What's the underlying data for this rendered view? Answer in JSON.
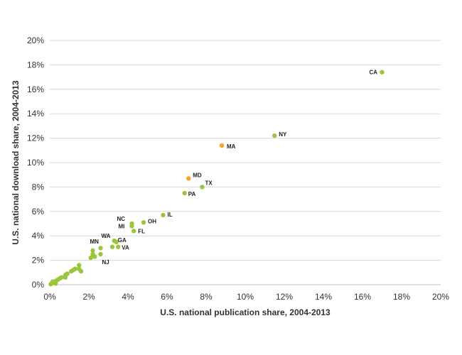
{
  "chart_data": {
    "type": "scatter",
    "title": "",
    "xlabel": "U.S. national publication share, 2004-2013",
    "ylabel": "U.S. national download share, 2004-2013",
    "xlim": [
      0,
      20
    ],
    "ylim": [
      0,
      20
    ],
    "x_ticks": [
      "0%",
      "2%",
      "4%",
      "6%",
      "8%",
      "10%",
      "12%",
      "14%",
      "16%",
      "18%",
      "20%"
    ],
    "y_ticks": [
      "0%",
      "2%",
      "4%",
      "6%",
      "8%",
      "10%",
      "12%",
      "14%",
      "16%",
      "18%",
      "20%"
    ],
    "grid": "horizontal",
    "legend": "none",
    "colors": {
      "default": "#9bc53d",
      "highlight": "#f5a623"
    },
    "points": [
      {
        "x": 17.0,
        "y": 17.4,
        "label": "CA",
        "highlight": false
      },
      {
        "x": 11.5,
        "y": 12.2,
        "label": "NY",
        "highlight": false
      },
      {
        "x": 8.8,
        "y": 11.4,
        "label": "MA",
        "highlight": true
      },
      {
        "x": 7.1,
        "y": 8.7,
        "label": "MD",
        "highlight": true
      },
      {
        "x": 7.8,
        "y": 8.0,
        "label": "TX",
        "highlight": false
      },
      {
        "x": 6.9,
        "y": 7.5,
        "label": "PA",
        "highlight": false
      },
      {
        "x": 5.8,
        "y": 5.7,
        "label": "IL",
        "highlight": false
      },
      {
        "x": 4.8,
        "y": 5.1,
        "label": "OH",
        "highlight": false
      },
      {
        "x": 4.2,
        "y": 5.0,
        "label": "NC",
        "highlight": false
      },
      {
        "x": 4.2,
        "y": 4.8,
        "label": "MI",
        "highlight": false
      },
      {
        "x": 4.3,
        "y": 4.4,
        "label": "FL",
        "highlight": false
      },
      {
        "x": 3.3,
        "y": 3.6,
        "label": "GA",
        "highlight": false
      },
      {
        "x": 3.4,
        "y": 3.5,
        "label": "WA",
        "highlight": false
      },
      {
        "x": 3.5,
        "y": 3.1,
        "label": "VA",
        "highlight": false
      },
      {
        "x": 3.2,
        "y": 3.1,
        "label": "",
        "highlight": false
      },
      {
        "x": 2.2,
        "y": 2.8,
        "label": "MN",
        "highlight": false
      },
      {
        "x": 2.6,
        "y": 2.5,
        "label": "NJ",
        "highlight": false
      },
      {
        "x": 2.6,
        "y": 3.0,
        "label": "",
        "highlight": false
      },
      {
        "x": 2.2,
        "y": 2.5,
        "label": "",
        "highlight": false
      },
      {
        "x": 2.3,
        "y": 2.3,
        "label": "",
        "highlight": false
      },
      {
        "x": 2.1,
        "y": 2.2,
        "label": "",
        "highlight": false
      },
      {
        "x": 1.5,
        "y": 1.6,
        "label": "",
        "highlight": false
      },
      {
        "x": 1.5,
        "y": 1.3,
        "label": "",
        "highlight": false
      },
      {
        "x": 1.6,
        "y": 1.1,
        "label": "",
        "highlight": false
      },
      {
        "x": 1.3,
        "y": 1.3,
        "label": "",
        "highlight": false
      },
      {
        "x": 1.2,
        "y": 1.2,
        "label": "",
        "highlight": false
      },
      {
        "x": 1.1,
        "y": 1.1,
        "label": "",
        "highlight": false
      },
      {
        "x": 0.9,
        "y": 0.9,
        "label": "",
        "highlight": false
      },
      {
        "x": 0.8,
        "y": 0.8,
        "label": "",
        "highlight": false
      },
      {
        "x": 0.8,
        "y": 0.6,
        "label": "",
        "highlight": false
      },
      {
        "x": 0.6,
        "y": 0.6,
        "label": "",
        "highlight": false
      },
      {
        "x": 0.5,
        "y": 0.5,
        "label": "",
        "highlight": false
      },
      {
        "x": 0.4,
        "y": 0.4,
        "label": "",
        "highlight": false
      },
      {
        "x": 0.3,
        "y": 0.3,
        "label": "",
        "highlight": false
      },
      {
        "x": 0.2,
        "y": 0.2,
        "label": "",
        "highlight": false
      },
      {
        "x": 0.3,
        "y": 0.1,
        "label": "",
        "highlight": false
      },
      {
        "x": 0.15,
        "y": 0.25,
        "label": "",
        "highlight": false
      },
      {
        "x": 0.1,
        "y": 0.1,
        "label": "",
        "highlight": false
      },
      {
        "x": 0.05,
        "y": 0.05,
        "label": "",
        "highlight": false
      }
    ]
  }
}
